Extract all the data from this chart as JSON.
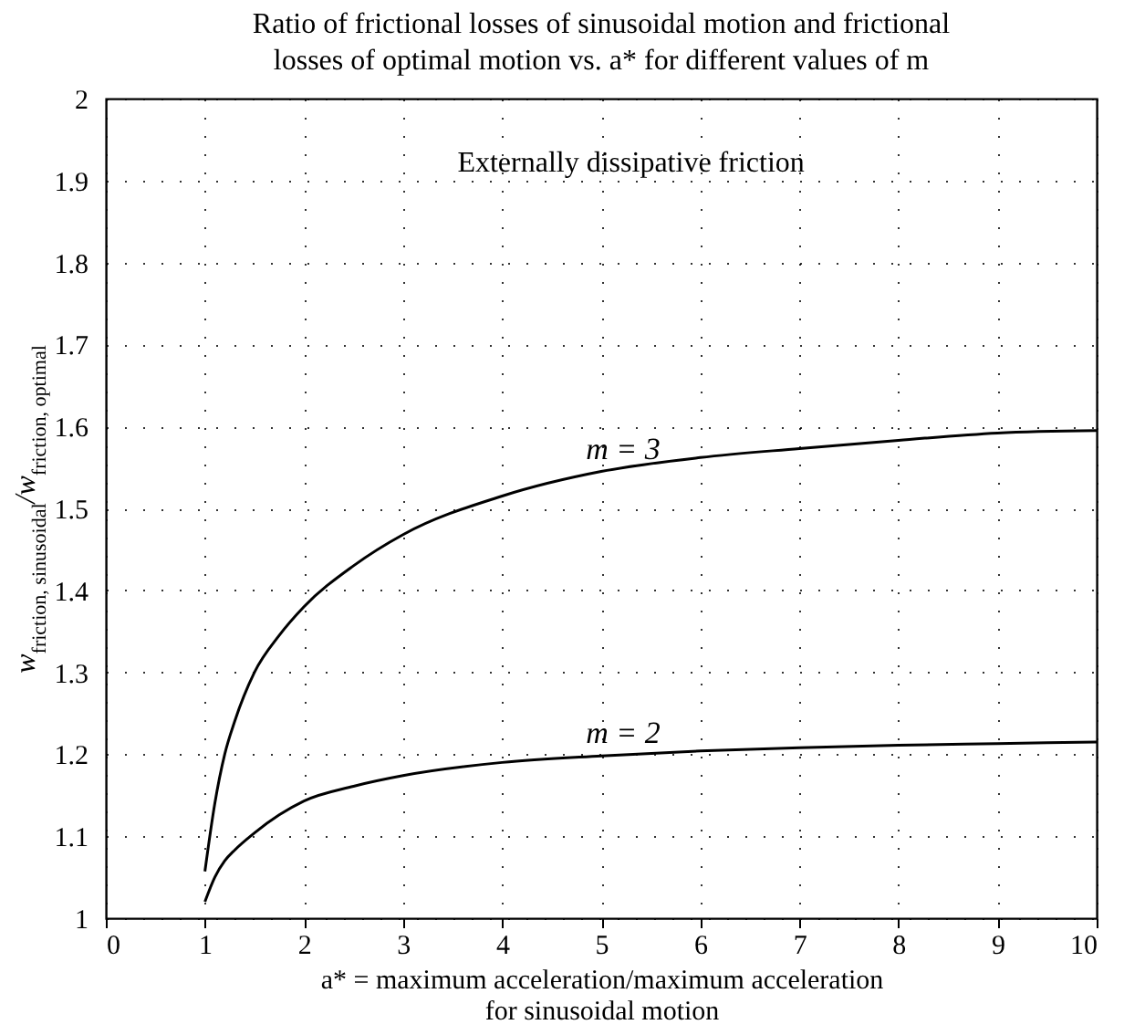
{
  "chart_data": {
    "type": "line",
    "title": "Ratio of frictional losses of sinusoidal motion and frictional\nlosses of optimal motion vs. a* for different values of m",
    "xlabel": "a* = maximum acceleration/maximum acceleration\nfor sinusoidal motion",
    "ylabel": "w$_{friction, sinusoidal}$/w$_{friction, optimal}$",
    "annotations": [
      "Externally dissipative friction"
    ],
    "x": [
      1,
      1.1,
      1.2,
      1.3,
      1.5,
      1.75,
      2,
      2.5,
      3,
      4,
      5,
      6,
      7,
      8,
      9,
      10
    ],
    "series": [
      {
        "name": "m = 3",
        "color": "#000000",
        "values": [
          1.057,
          1.14,
          1.2,
          1.24,
          1.3,
          1.345,
          1.38,
          1.43,
          1.468,
          1.515,
          1.545,
          1.562,
          1.573,
          1.583,
          1.592,
          1.595
        ]
      },
      {
        "name": "m = 2",
        "color": "#000000",
        "values": [
          1.02,
          1.05,
          1.07,
          1.083,
          1.104,
          1.126,
          1.143,
          1.161,
          1.174,
          1.19,
          1.198,
          1.204,
          1.208,
          1.211,
          1.213,
          1.215
        ]
      }
    ],
    "xlim": [
      0,
      10
    ],
    "xticks": [
      0,
      1,
      2,
      3,
      4,
      5,
      6,
      7,
      8,
      9,
      10
    ],
    "ylim": [
      1,
      2
    ],
    "yticks": [
      1,
      1.1,
      1.2,
      1.3,
      1.4,
      1.5,
      1.6,
      1.7,
      1.8,
      1.9,
      2
    ],
    "grid": true,
    "legend": false,
    "line_style": "solid",
    "marker": "none"
  }
}
